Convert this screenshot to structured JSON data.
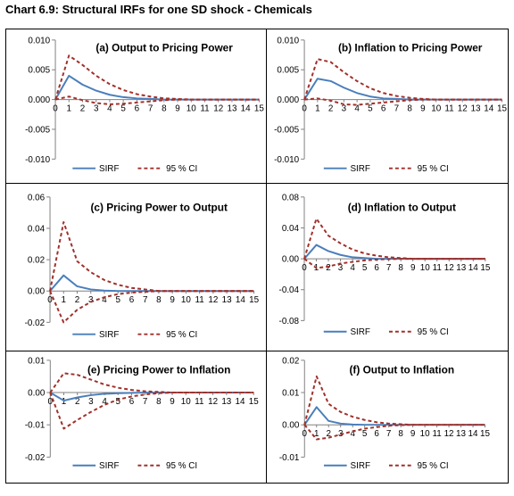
{
  "title": "Chart 6.9: Structural IRFs for one SD shock - Chemicals",
  "chart_data": [
    {
      "type": "line",
      "title": "(a) Output to Pricing Power",
      "x": [
        0,
        1,
        2,
        3,
        4,
        5,
        6,
        7,
        8,
        9,
        10,
        11,
        12,
        13,
        14,
        15
      ],
      "ylim": [
        -0.01,
        0.01
      ],
      "yticks": [
        "0.010",
        "0.005",
        "0.000",
        "-0.005",
        "-0.010"
      ],
      "legend_position": "bottom",
      "series": [
        {
          "name": "SIRF",
          "style": "solid",
          "color": "#4a7ebb",
          "values": [
            0,
            0.004,
            0.0025,
            0.0015,
            0.0008,
            0.0004,
            0.0002,
            0.0001,
            0,
            0,
            0,
            0,
            0,
            0,
            0,
            0
          ]
        },
        {
          "name": "95 % CI",
          "style": "dashed",
          "color": "#a0302a",
          "values": [
            0,
            0.0074,
            0.0058,
            0.004,
            0.0026,
            0.0016,
            0.0009,
            0.0005,
            0.0002,
            0.0001,
            0,
            0,
            0,
            0,
            0,
            0
          ]
        },
        {
          "name": "",
          "style": "dashed",
          "color": "#a0302a",
          "values": [
            0,
            0.0005,
            -0.0001,
            -0.0006,
            -0.0008,
            -0.0007,
            -0.0005,
            -0.0003,
            -0.0001,
            0,
            0,
            0,
            0,
            0,
            0,
            0
          ]
        }
      ]
    },
    {
      "type": "line",
      "title": "(b) Inflation to Pricing Power",
      "x": [
        0,
        1,
        2,
        3,
        4,
        5,
        6,
        7,
        8,
        9,
        10,
        11,
        12,
        13,
        14,
        15
      ],
      "ylim": [
        -0.01,
        0.01
      ],
      "yticks": [
        "0.010",
        "0.005",
        "0.000",
        "-0.005",
        "-0.010"
      ],
      "legend_position": "bottom",
      "series": [
        {
          "name": "SIRF",
          "style": "solid",
          "color": "#4a7ebb",
          "values": [
            0,
            0.0035,
            0.0031,
            0.002,
            0.0011,
            0.0005,
            0.0002,
            0.0001,
            0,
            0,
            0,
            0,
            0,
            0,
            0,
            0
          ]
        },
        {
          "name": "95 % CI",
          "style": "dashed",
          "color": "#a0302a",
          "values": [
            0,
            0.0068,
            0.0063,
            0.0046,
            0.0031,
            0.0019,
            0.0011,
            0.0006,
            0.0003,
            0.0001,
            0,
            0,
            0,
            0,
            0,
            0
          ]
        },
        {
          "name": "",
          "style": "dashed",
          "color": "#a0302a",
          "values": [
            0,
            0.0002,
            -0.0002,
            -0.0008,
            -0.0009,
            -0.0007,
            -0.0005,
            -0.0003,
            -0.0001,
            0,
            0,
            0,
            0,
            0,
            0,
            0
          ]
        }
      ]
    },
    {
      "type": "line",
      "title": "(c) Pricing Power to Output",
      "x": [
        0,
        1,
        2,
        3,
        4,
        5,
        6,
        7,
        8,
        9,
        10,
        11,
        12,
        13,
        14,
        15
      ],
      "ylim": [
        -0.02,
        0.06
      ],
      "yticks": [
        "0.06",
        "0.04",
        "0.02",
        "0.00",
        "-0.02"
      ],
      "legend_position": "bottom",
      "series": [
        {
          "name": "SIRF",
          "style": "solid",
          "color": "#4a7ebb",
          "values": [
            0,
            0.01,
            0.003,
            0.001,
            0.0003,
            0,
            0,
            0,
            0,
            0,
            0,
            0,
            0,
            0,
            0,
            0
          ]
        },
        {
          "name": "95 % CI",
          "style": "dashed",
          "color": "#a0302a",
          "values": [
            0,
            0.044,
            0.019,
            0.012,
            0.007,
            0.004,
            0.002,
            0.001,
            0,
            0,
            0,
            0,
            0,
            0,
            0,
            0
          ]
        },
        {
          "name": "",
          "style": "dashed",
          "color": "#a0302a",
          "values": [
            0,
            -0.02,
            -0.012,
            -0.007,
            -0.004,
            -0.002,
            -0.001,
            -0.0005,
            0,
            0,
            0,
            0,
            0,
            0,
            0,
            0
          ]
        }
      ]
    },
    {
      "type": "line",
      "title": "(d) Inflation to Output",
      "x": [
        0,
        1,
        2,
        3,
        4,
        5,
        6,
        7,
        8,
        9,
        10,
        11,
        12,
        13,
        14,
        15
      ],
      "ylim": [
        -0.08,
        0.08
      ],
      "yticks": [
        "0.08",
        "0.04",
        "0.00",
        "-0.04",
        "-0.08"
      ],
      "legend_position": "bottom",
      "series": [
        {
          "name": "SIRF",
          "style": "solid",
          "color": "#4a7ebb",
          "values": [
            0,
            0.018,
            0.01,
            0.005,
            0.002,
            0.001,
            0,
            0,
            0,
            0,
            0,
            0,
            0,
            0,
            0,
            0
          ]
        },
        {
          "name": "95 % CI",
          "style": "dashed",
          "color": "#a0302a",
          "values": [
            0,
            0.052,
            0.03,
            0.02,
            0.012,
            0.007,
            0.004,
            0.002,
            0.001,
            0,
            0,
            0,
            0,
            0,
            0,
            0
          ]
        },
        {
          "name": "",
          "style": "dashed",
          "color": "#a0302a",
          "values": [
            0,
            -0.012,
            -0.01,
            -0.006,
            -0.004,
            -0.002,
            -0.001,
            -0.0005,
            0,
            0,
            0,
            0,
            0,
            0,
            0,
            0
          ]
        }
      ]
    },
    {
      "type": "line",
      "title": "(e) Pricing Power to Inflation",
      "x": [
        0,
        1,
        2,
        3,
        4,
        5,
        6,
        7,
        8,
        9,
        10,
        11,
        12,
        13,
        14,
        15
      ],
      "ylim": [
        -0.02,
        0.01
      ],
      "yticks": [
        "0.01",
        "0.00",
        "-0.01",
        "-0.02"
      ],
      "legend_position": "bottom",
      "series": [
        {
          "name": "SIRF",
          "style": "solid",
          "color": "#4a7ebb",
          "values": [
            0,
            -0.0025,
            -0.0015,
            -0.0008,
            -0.0004,
            -0.0002,
            -0.0001,
            0,
            0,
            0,
            0,
            0,
            0,
            0,
            0,
            0
          ]
        },
        {
          "name": "95 % CI",
          "style": "dashed",
          "color": "#a0302a",
          "values": [
            0,
            0.006,
            0.0055,
            0.004,
            0.0025,
            0.0015,
            0.0008,
            0.0004,
            0.0002,
            0,
            0,
            0,
            0,
            0,
            0,
            0
          ]
        },
        {
          "name": "",
          "style": "dashed",
          "color": "#a0302a",
          "values": [
            0,
            -0.0112,
            -0.0085,
            -0.006,
            -0.0038,
            -0.0022,
            -0.0012,
            -0.0006,
            -0.0002,
            0,
            0,
            0,
            0,
            0,
            0,
            0
          ]
        }
      ]
    },
    {
      "type": "line",
      "title": "(f) Output to Inflation",
      "x": [
        0,
        1,
        2,
        3,
        4,
        5,
        6,
        7,
        8,
        9,
        10,
        11,
        12,
        13,
        14,
        15
      ],
      "ylim": [
        -0.01,
        0.02
      ],
      "yticks": [
        "0.02",
        "0.01",
        "0.00",
        "-0.01"
      ],
      "legend_position": "bottom",
      "series": [
        {
          "name": "SIRF",
          "style": "solid",
          "color": "#4a7ebb",
          "values": [
            0,
            0.0055,
            0.0012,
            0.0004,
            0.0001,
            0,
            0,
            0,
            0,
            0,
            0,
            0,
            0,
            0,
            0,
            0
          ]
        },
        {
          "name": "95 % CI",
          "style": "dashed",
          "color": "#a0302a",
          "values": [
            0,
            0.015,
            0.0065,
            0.004,
            0.0025,
            0.0015,
            0.0008,
            0.0004,
            0.0002,
            0,
            0,
            0,
            0,
            0,
            0,
            0
          ]
        },
        {
          "name": "",
          "style": "dashed",
          "color": "#a0302a",
          "values": [
            0,
            -0.0045,
            -0.004,
            -0.003,
            -0.002,
            -0.0012,
            -0.0007,
            -0.0003,
            -0.0001,
            0,
            0,
            0,
            0,
            0,
            0,
            0
          ]
        }
      ]
    }
  ]
}
